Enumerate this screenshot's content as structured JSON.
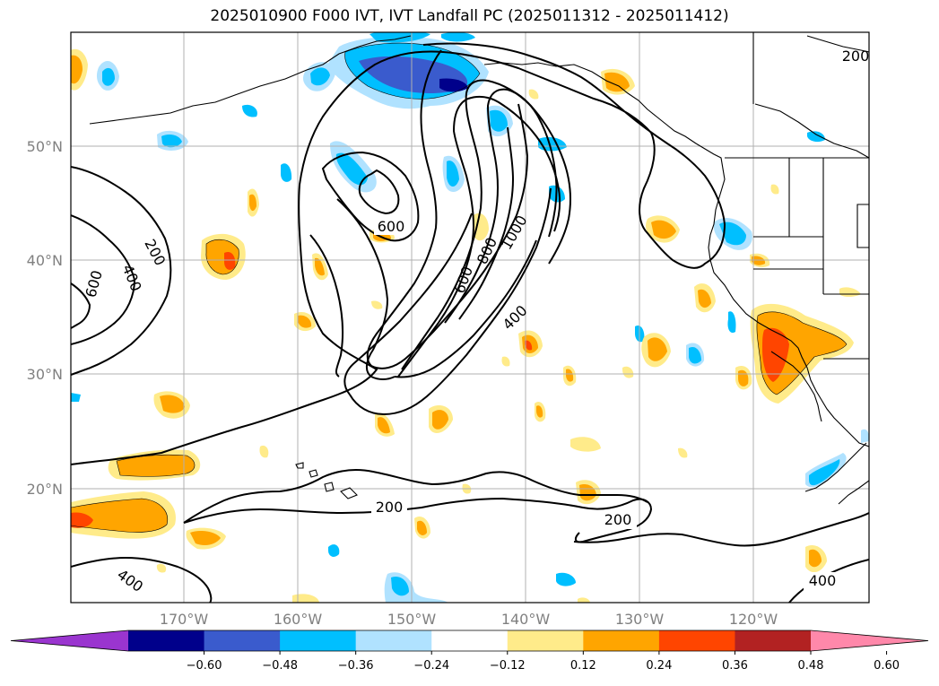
{
  "title": "2025010900 F000 IVT, IVT Landfall PC (2025011312 - 2025011412)",
  "latitude_labels": [
    "50°N",
    "40°N",
    "30°N",
    "20°N"
  ],
  "longitude_labels": [
    "170°W",
    "160°W",
    "150°W",
    "140°W",
    "130°W",
    "120°W"
  ],
  "contour_labels": [
    "600",
    "1000",
    "800",
    "600",
    "400",
    "200",
    "600",
    "400",
    "200",
    "200",
    "400",
    "400",
    "200"
  ],
  "colorbar": {
    "tick_labels": [
      "−0.60",
      "−0.48",
      "−0.36",
      "−0.24",
      "−0.12",
      "0.12",
      "0.24",
      "0.36",
      "0.48",
      "0.60"
    ],
    "colors": [
      "#9a35cf",
      "#00008b",
      "#3a5bcd",
      "#00bfff",
      "#b0e2ff",
      "#ffffff",
      "#ffeb8a",
      "#ffa500",
      "#ff4500",
      "#b22222",
      "#ff88aa"
    ]
  },
  "map_features": [
    "pc-shading",
    "ivt-contours",
    "coastlines",
    "state-borders",
    "gridlines"
  ]
}
